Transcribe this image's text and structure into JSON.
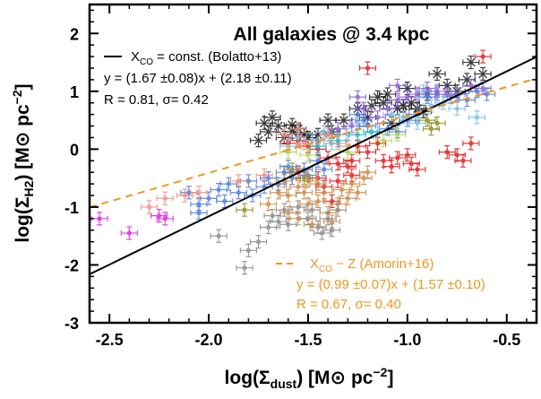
{
  "chart_data": {
    "type": "scatter",
    "title": "All galaxies @ 3.4 kpc",
    "xlabel": "log(Σdust) [M⊙ pc⁻²]",
    "ylabel": "log(ΣH2) [M⊙ pc⁻²]",
    "xlim": [
      -2.6,
      -0.35
    ],
    "ylim": [
      -3,
      2.5
    ],
    "xticks": [
      -2.5,
      -2.0,
      -1.5,
      -1.0,
      -0.5
    ],
    "xtick_labels": [
      "-2.5",
      "-2.0",
      "-1.5",
      "-1.0",
      "-0.5"
    ],
    "yticks": [
      -3,
      -2,
      -1,
      0,
      1,
      2
    ],
    "ytick_labels": [
      "-3",
      "-2",
      "-1",
      "0",
      "1",
      "2"
    ],
    "grid": false,
    "fits": [
      {
        "label": "X_CO = const. (Bolatto+13)",
        "slope": 1.67,
        "intercept": 2.18,
        "style": "solid",
        "color": "#000000",
        "eq": "y = (1.67 ±0.08)x + (2.18 ±0.11)",
        "stats": "R = 0.81, σ= 0.42"
      },
      {
        "label": "X_CO − Z (Amorin+16)",
        "slope": 0.99,
        "intercept": 1.57,
        "style": "dashed",
        "color": "#f0961e",
        "eq": "y = (0.99 ±0.07)x + (1.57 ±0.10)",
        "stats": "R = 0.67, σ= 0.40"
      }
    ],
    "series": [
      {
        "color": "#1a1a1a",
        "marker": "asterisk",
        "points": [
          [
            -1.72,
            0.45
          ],
          [
            -1.7,
            0.3
          ],
          [
            -1.68,
            0.55
          ],
          [
            -1.65,
            0.4
          ],
          [
            -1.62,
            0.2
          ],
          [
            -1.58,
            0.3
          ],
          [
            -1.55,
            0.35
          ],
          [
            -1.52,
            0.25
          ],
          [
            -1.5,
            0.2
          ],
          [
            -1.45,
            0.25
          ],
          [
            -1.4,
            0.5
          ],
          [
            -1.38,
            0.3
          ],
          [
            -1.32,
            0.5
          ],
          [
            -1.25,
            0.7
          ],
          [
            -1.2,
            0.55
          ],
          [
            -1.18,
            0.75
          ],
          [
            -1.15,
            0.9
          ],
          [
            -1.12,
            0.8
          ],
          [
            -1.08,
            0.45
          ],
          [
            -1.05,
            0.7
          ],
          [
            -1.02,
            0.75
          ],
          [
            -1.0,
            1.05
          ],
          [
            -0.98,
            0.8
          ],
          [
            -0.95,
            0.7
          ],
          [
            -0.92,
            0.65
          ],
          [
            -0.9,
            0.95
          ],
          [
            -0.85,
            1.3
          ],
          [
            -0.8,
            1.1
          ],
          [
            -0.75,
            1.0
          ],
          [
            -0.7,
            1.2
          ],
          [
            -0.68,
            1.5
          ],
          [
            -0.62,
            1.3
          ],
          [
            -1.75,
            0.15
          ],
          [
            -1.58,
            0.42
          ],
          [
            -1.1,
            0.95
          ]
        ]
      },
      {
        "color": "#e31a1c",
        "marker": "dot",
        "points": [
          [
            -1.6,
            0.1
          ],
          [
            -1.55,
            0.15
          ],
          [
            -1.5,
            0.05
          ],
          [
            -1.45,
            0.0
          ],
          [
            -1.4,
            -0.15
          ],
          [
            -1.35,
            -0.25
          ],
          [
            -1.3,
            -0.3
          ],
          [
            -1.28,
            -0.2
          ],
          [
            -1.25,
            0.05
          ],
          [
            -1.2,
            -0.05
          ],
          [
            -1.15,
            0.1
          ],
          [
            -1.12,
            -0.2
          ],
          [
            -1.08,
            -0.3
          ],
          [
            -1.05,
            -0.15
          ],
          [
            -1.0,
            -0.1
          ],
          [
            -0.98,
            -0.25
          ],
          [
            -0.95,
            -0.35
          ],
          [
            -0.8,
            -0.05
          ],
          [
            -0.75,
            -0.1
          ],
          [
            -0.72,
            -0.2
          ],
          [
            -0.68,
            0.1
          ],
          [
            -0.62,
            1.6
          ],
          [
            -1.2,
            1.4
          ],
          [
            -1.35,
            -0.55
          ],
          [
            -1.42,
            -0.65
          ],
          [
            -1.38,
            -0.9
          ],
          [
            -1.45,
            -0.5
          ],
          [
            -1.55,
            -0.4
          ],
          [
            -1.28,
            -0.45
          ]
        ]
      },
      {
        "color": "#4a7bdc",
        "marker": "dot",
        "points": [
          [
            -2.1,
            -0.75
          ],
          [
            -2.05,
            -0.95
          ],
          [
            -2.0,
            -0.85
          ],
          [
            -1.95,
            -0.7
          ],
          [
            -1.9,
            -0.6
          ],
          [
            -1.85,
            -0.75
          ],
          [
            -1.8,
            -0.55
          ],
          [
            -1.78,
            -0.8
          ],
          [
            -1.72,
            -0.65
          ],
          [
            -1.7,
            -0.5
          ],
          [
            -1.65,
            -0.6
          ],
          [
            -1.62,
            -0.4
          ],
          [
            -1.6,
            -0.3
          ],
          [
            -1.58,
            -0.5
          ],
          [
            -1.52,
            -0.35
          ],
          [
            -1.5,
            -0.45
          ],
          [
            -1.45,
            -0.2
          ],
          [
            -1.42,
            -0.35
          ],
          [
            -1.25,
            0.6
          ],
          [
            -1.22,
            0.5
          ],
          [
            -1.2,
            0.4
          ],
          [
            -1.1,
            0.35
          ],
          [
            -1.05,
            0.3
          ],
          [
            -1.0,
            0.5
          ],
          [
            -0.95,
            0.6
          ],
          [
            -0.9,
            0.9
          ],
          [
            -0.85,
            0.95
          ],
          [
            -0.78,
            0.9
          ],
          [
            -0.7,
            0.85
          ],
          [
            -0.65,
            1.0
          ],
          [
            -0.6,
            0.95
          ],
          [
            -2.05,
            -1.1
          ],
          [
            -1.92,
            -0.9
          ]
        ]
      },
      {
        "color": "#7bbce8",
        "marker": "dot",
        "points": [
          [
            -1.55,
            0.2
          ],
          [
            -1.48,
            0.15
          ],
          [
            -1.42,
            0.3
          ],
          [
            -1.38,
            0.1
          ],
          [
            -1.3,
            0.25
          ],
          [
            -1.25,
            0.45
          ],
          [
            -1.15,
            0.3
          ],
          [
            -1.08,
            0.6
          ],
          [
            -1.02,
            0.55
          ],
          [
            -0.95,
            0.45
          ],
          [
            -0.88,
            0.75
          ],
          [
            -0.82,
            0.8
          ],
          [
            -0.75,
            0.7
          ],
          [
            -0.65,
            0.55
          ],
          [
            -0.92,
            1.0
          ],
          [
            -1.6,
            0.05
          ]
        ]
      },
      {
        "color": "#8a5cd6",
        "marker": "dot",
        "points": [
          [
            -1.35,
            0.35
          ],
          [
            -1.28,
            0.4
          ],
          [
            -1.22,
            0.7
          ],
          [
            -1.15,
            0.55
          ],
          [
            -1.1,
            0.7
          ],
          [
            -1.05,
            0.85
          ],
          [
            -1.0,
            0.9
          ],
          [
            -0.95,
            0.95
          ],
          [
            -0.9,
            1.05
          ],
          [
            -0.85,
            1.0
          ],
          [
            -0.8,
            0.95
          ],
          [
            -0.75,
            0.95
          ],
          [
            -0.68,
            1.1
          ],
          [
            -0.62,
            1.05
          ],
          [
            -1.25,
            0.9
          ],
          [
            -1.05,
            1.1
          ]
        ]
      },
      {
        "color": "#cc8844",
        "marker": "dot",
        "points": [
          [
            -1.7,
            -0.95
          ],
          [
            -1.65,
            -0.75
          ],
          [
            -1.6,
            -0.8
          ],
          [
            -1.55,
            -0.65
          ],
          [
            -1.5,
            -0.55
          ],
          [
            -1.5,
            -0.95
          ],
          [
            -1.45,
            -0.9
          ],
          [
            -1.42,
            -0.75
          ],
          [
            -1.4,
            -1.1
          ],
          [
            -1.38,
            -1.25
          ],
          [
            -1.35,
            -0.95
          ],
          [
            -1.33,
            -0.7
          ],
          [
            -1.3,
            -0.85
          ],
          [
            -1.28,
            -0.6
          ],
          [
            -1.25,
            -0.75
          ],
          [
            -1.22,
            -0.5
          ],
          [
            -1.2,
            -0.4
          ],
          [
            -1.55,
            -1.2
          ],
          [
            -1.48,
            -1.3
          ],
          [
            -1.6,
            -1.1
          ],
          [
            -1.45,
            -0.6
          ],
          [
            -1.62,
            -0.55
          ],
          [
            -1.52,
            -0.75
          ]
        ]
      },
      {
        "color": "#8a8a8a",
        "marker": "dot",
        "points": [
          [
            -1.95,
            -1.5
          ],
          [
            -1.82,
            -2.05
          ],
          [
            -1.8,
            -1.75
          ],
          [
            -1.75,
            -1.6
          ],
          [
            -1.7,
            -1.35
          ],
          [
            -1.68,
            -1.15
          ],
          [
            -1.65,
            -1.25
          ],
          [
            -1.62,
            -1.05
          ],
          [
            -1.6,
            -1.3
          ],
          [
            -1.55,
            -1.0
          ],
          [
            -1.5,
            -1.2
          ],
          [
            -1.48,
            -1.05
          ],
          [
            -1.45,
            -1.35
          ],
          [
            -1.43,
            -1.45
          ],
          [
            -1.4,
            -1.2
          ],
          [
            -1.38,
            -1.4
          ],
          [
            -1.35,
            -1.05
          ]
        ]
      },
      {
        "color": "#f08f80",
        "marker": "dot",
        "points": [
          [
            -2.3,
            -1.0
          ],
          [
            -2.22,
            -0.85
          ],
          [
            -2.12,
            -0.8
          ],
          [
            -2.05,
            -0.75
          ],
          [
            -1.85,
            -0.55
          ],
          [
            -1.72,
            -0.45
          ],
          [
            -1.62,
            0.25
          ],
          [
            -1.55,
            0.35
          ],
          [
            -1.52,
            0.1
          ],
          [
            -1.4,
            0.25
          ],
          [
            -1.35,
            0.1
          ],
          [
            -1.3,
            0.05
          ]
        ]
      },
      {
        "color": "#a8d94a",
        "marker": "dot",
        "points": [
          [
            -1.6,
            -0.05
          ],
          [
            -1.5,
            -0.1
          ],
          [
            -1.3,
            -0.05
          ],
          [
            -1.12,
            0.15
          ],
          [
            -1.05,
            0.25
          ]
        ]
      },
      {
        "color": "#8c8c1a",
        "marker": "dot",
        "points": [
          [
            -1.82,
            -1.05
          ],
          [
            -1.58,
            -0.35
          ],
          [
            -1.52,
            -0.5
          ],
          [
            -0.9,
            0.5
          ],
          [
            -0.85,
            0.45
          ],
          [
            -0.88,
            0.35
          ]
        ]
      },
      {
        "color": "#e020e0",
        "marker": "dot",
        "points": [
          [
            -2.55,
            -1.2
          ],
          [
            -2.4,
            -1.45
          ],
          [
            -2.25,
            -1.15
          ],
          [
            -2.22,
            -1.2
          ]
        ]
      },
      {
        "color": "#22b8c8",
        "marker": "dot",
        "points": [
          [
            -1.45,
            0.05
          ],
          [
            -1.35,
            0.15
          ],
          [
            -1.25,
            0.25
          ],
          [
            -1.18,
            0.3
          ]
        ]
      }
    ]
  }
}
